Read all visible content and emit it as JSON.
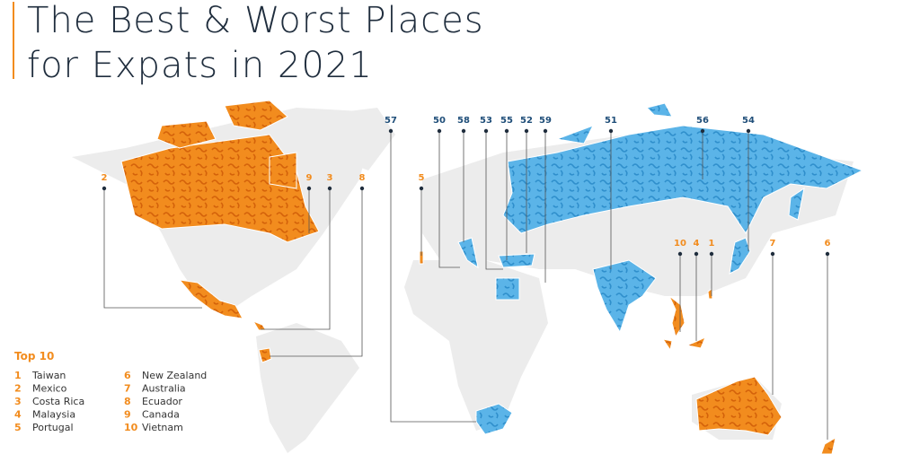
{
  "header": {
    "title_lines": [
      "The Best & Worst Places",
      "for Expats in 2021"
    ]
  },
  "best_labels": [
    2,
    9,
    3,
    8,
    5,
    10,
    4,
    1,
    7,
    6
  ],
  "worst_labels": [
    57,
    50,
    58,
    53,
    55,
    52,
    59,
    51,
    56,
    54
  ],
  "top10": {
    "title": "Top 10",
    "items": [
      {
        "rank": 1,
        "country": "Taiwan"
      },
      {
        "rank": 2,
        "country": "Mexico"
      },
      {
        "rank": 3,
        "country": "Costa Rica"
      },
      {
        "rank": 4,
        "country": "Malaysia"
      },
      {
        "rank": 5,
        "country": "Portugal"
      },
      {
        "rank": 6,
        "country": "New Zealand"
      },
      {
        "rank": 7,
        "country": "Australia"
      },
      {
        "rank": 8,
        "country": "Ecuador"
      },
      {
        "rank": 9,
        "country": "Canada"
      },
      {
        "rank": 10,
        "country": "Vietnam"
      }
    ]
  }
}
